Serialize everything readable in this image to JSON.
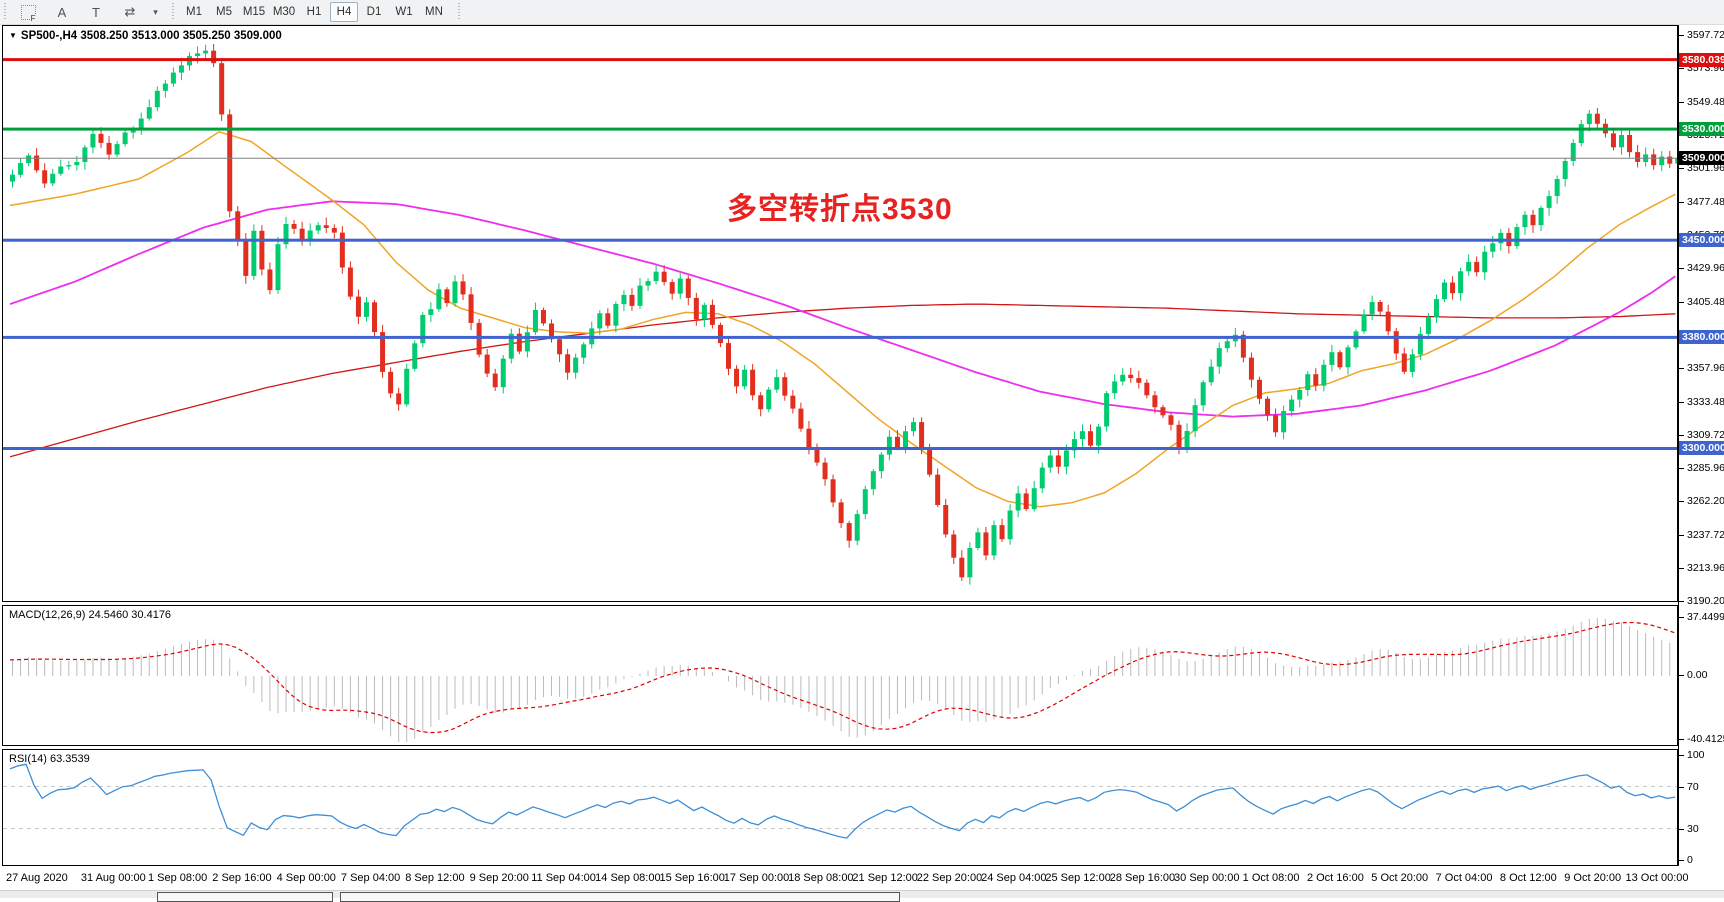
{
  "toolbar": {
    "icons": [
      {
        "name": "indicators-grid-icon",
        "glyph": "F",
        "kind": "grid"
      },
      {
        "name": "text-label-icon",
        "glyph": "A",
        "kind": "glyph"
      },
      {
        "name": "text-box-icon",
        "glyph": "T",
        "kind": "glyph"
      },
      {
        "name": "cursor-tools-icon",
        "glyph": "⇄",
        "kind": "glyph"
      },
      {
        "name": "cursor-tools-caret-icon",
        "glyph": "▾",
        "kind": "caret"
      }
    ],
    "timeframes": [
      {
        "label": "M1",
        "active": false
      },
      {
        "label": "M5",
        "active": false
      },
      {
        "label": "M15",
        "active": false
      },
      {
        "label": "M30",
        "active": false
      },
      {
        "label": "H1",
        "active": false
      },
      {
        "label": "H4",
        "active": true
      },
      {
        "label": "D1",
        "active": false
      },
      {
        "label": "W1",
        "active": false
      },
      {
        "label": "MN",
        "active": false
      }
    ]
  },
  "chart": {
    "header": "SP500-,H4  3508.250 3513.000 3505.250 3509.000",
    "annotation": "多空转折点3530",
    "colors": {
      "candle_up": "#00cb70",
      "candle_down": "#e12e1e",
      "ma_fast": "#efa524",
      "ma_mid": "#ee2dee",
      "ma_slow": "#d01616",
      "line_red": "#dd0e0e",
      "line_green": "#009f3c",
      "line_blue": "#3f63cf",
      "price_line": "#808080",
      "macd_hist": "#bbbbbb",
      "macd_signal": "#e00000",
      "rsi_line": "#3d8fd6",
      "annotation": "#e62320"
    },
    "price_axis_ticks": [
      "3597.720",
      "3573.960",
      "3549.480",
      "3525.720",
      "3501.960",
      "3477.480",
      "3453.720",
      "3429.960",
      "3405.480",
      "3381.720",
      "3357.960",
      "3333.480",
      "3309.720",
      "3285.960",
      "3262.200",
      "3237.720",
      "3213.960",
      "3190.200"
    ],
    "hlines": [
      {
        "label": "3580.039",
        "value": 3580.039,
        "color": "#dd0e0e",
        "width": 3
      },
      {
        "label": "3530.000",
        "value": 3530.0,
        "color": "#009f3c",
        "width": 3
      },
      {
        "label": "3450.000",
        "value": 3450.0,
        "color": "#3f63cf",
        "width": 3
      },
      {
        "label": "3380.000",
        "value": 3380.0,
        "color": "#3f63cf",
        "width": 3
      },
      {
        "label": "3300.000",
        "value": 3300.0,
        "color": "#3f63cf",
        "width": 3
      }
    ],
    "current_price": {
      "label": "3509.000",
      "value": 3509.0,
      "badge_bg": "#000000"
    }
  },
  "panels": {
    "macd_label": "MACD(12,26,9) 24.5460 30.4176",
    "rsi_label": "RSI(14) 63.3539"
  },
  "chart_data": {
    "type": "candlestick",
    "symbol": "SP500-",
    "timeframe": "H4",
    "ohlc_current": {
      "open": 3508.25,
      "high": 3513.0,
      "low": 3505.25,
      "close": 3509.0
    },
    "levels": [
      3580.039,
      3530.0,
      3450.0,
      3380.0,
      3300.0
    ],
    "price_range": {
      "top": 3597.72,
      "bottom": 3190.2
    },
    "bars": 208,
    "close_waypoints": [
      [
        0,
        3498
      ],
      [
        2,
        3512
      ],
      [
        4,
        3490
      ],
      [
        6,
        3503
      ],
      [
        8,
        3507
      ],
      [
        10,
        3528
      ],
      [
        12,
        3511
      ],
      [
        14,
        3526
      ],
      [
        16,
        3536
      ],
      [
        18,
        3556
      ],
      [
        20,
        3572
      ],
      [
        22,
        3583
      ],
      [
        24,
        3586
      ],
      [
        25,
        3576
      ],
      [
        26,
        3542
      ],
      [
        27,
        3470
      ],
      [
        28,
        3448
      ],
      [
        29,
        3425
      ],
      [
        30,
        3456
      ],
      [
        31,
        3430
      ],
      [
        32,
        3414
      ],
      [
        33,
        3446
      ],
      [
        34,
        3463
      ],
      [
        36,
        3450
      ],
      [
        38,
        3461
      ],
      [
        40,
        3456
      ],
      [
        41,
        3430
      ],
      [
        42,
        3410
      ],
      [
        43,
        3394
      ],
      [
        44,
        3406
      ],
      [
        45,
        3384
      ],
      [
        46,
        3354
      ],
      [
        47,
        3339
      ],
      [
        48,
        3330
      ],
      [
        49,
        3356
      ],
      [
        50,
        3376
      ],
      [
        51,
        3396
      ],
      [
        52,
        3401
      ],
      [
        53,
        3416
      ],
      [
        54,
        3404
      ],
      [
        55,
        3421
      ],
      [
        56,
        3410
      ],
      [
        57,
        3389
      ],
      [
        58,
        3369
      ],
      [
        59,
        3354
      ],
      [
        60,
        3343
      ],
      [
        61,
        3366
      ],
      [
        62,
        3381
      ],
      [
        63,
        3371
      ],
      [
        64,
        3383
      ],
      [
        65,
        3399
      ],
      [
        66,
        3391
      ],
      [
        67,
        3379
      ],
      [
        68,
        3369
      ],
      [
        69,
        3354
      ],
      [
        70,
        3366
      ],
      [
        71,
        3376
      ],
      [
        72,
        3386
      ],
      [
        73,
        3396
      ],
      [
        74,
        3389
      ],
      [
        75,
        3403
      ],
      [
        76,
        3411
      ],
      [
        77,
        3404
      ],
      [
        78,
        3416
      ],
      [
        79,
        3421
      ],
      [
        80,
        3429
      ],
      [
        81,
        3419
      ],
      [
        82,
        3411
      ],
      [
        83,
        3421
      ],
      [
        84,
        3407
      ],
      [
        85,
        3394
      ],
      [
        86,
        3403
      ],
      [
        87,
        3389
      ],
      [
        88,
        3377
      ],
      [
        89,
        3359
      ],
      [
        90,
        3344
      ],
      [
        91,
        3356
      ],
      [
        92,
        3339
      ],
      [
        93,
        3329
      ],
      [
        94,
        3343
      ],
      [
        95,
        3353
      ],
      [
        96,
        3339
      ],
      [
        97,
        3327
      ],
      [
        98,
        3314
      ],
      [
        99,
        3299
      ],
      [
        100,
        3291
      ],
      [
        101,
        3279
      ],
      [
        102,
        3261
      ],
      [
        103,
        3247
      ],
      [
        104,
        3234
      ],
      [
        105,
        3253
      ],
      [
        106,
        3271
      ],
      [
        107,
        3283
      ],
      [
        108,
        3296
      ],
      [
        109,
        3309
      ],
      [
        110,
        3299
      ],
      [
        111,
        3313
      ],
      [
        112,
        3319
      ],
      [
        113,
        3299
      ],
      [
        114,
        3281
      ],
      [
        115,
        3259
      ],
      [
        116,
        3239
      ],
      [
        117,
        3222
      ],
      [
        118,
        3208
      ],
      [
        119,
        3229
      ],
      [
        120,
        3239
      ],
      [
        121,
        3224
      ],
      [
        122,
        3246
      ],
      [
        123,
        3234
      ],
      [
        124,
        3256
      ],
      [
        125,
        3269
      ],
      [
        126,
        3257
      ],
      [
        127,
        3273
      ],
      [
        128,
        3286
      ],
      [
        129,
        3296
      ],
      [
        130,
        3287
      ],
      [
        131,
        3299
      ],
      [
        132,
        3306
      ],
      [
        133,
        3311
      ],
      [
        134,
        3301
      ],
      [
        135,
        3316
      ],
      [
        136,
        3341
      ],
      [
        138,
        3353
      ],
      [
        140,
        3346
      ],
      [
        142,
        3331
      ],
      [
        144,
        3316
      ],
      [
        145,
        3301
      ],
      [
        146,
        3313
      ],
      [
        147,
        3331
      ],
      [
        148,
        3346
      ],
      [
        149,
        3359
      ],
      [
        150,
        3371
      ],
      [
        152,
        3381
      ],
      [
        153,
        3367
      ],
      [
        154,
        3351
      ],
      [
        155,
        3337
      ],
      [
        156,
        3324
      ],
      [
        157,
        3311
      ],
      [
        158,
        3326
      ],
      [
        160,
        3341
      ],
      [
        161,
        3353
      ],
      [
        162,
        3344
      ],
      [
        163,
        3359
      ],
      [
        164,
        3369
      ],
      [
        165,
        3359
      ],
      [
        166,
        3373
      ],
      [
        167,
        3383
      ],
      [
        168,
        3396
      ],
      [
        169,
        3406
      ],
      [
        170,
        3397
      ],
      [
        171,
        3384
      ],
      [
        172,
        3369
      ],
      [
        173,
        3354
      ],
      [
        174,
        3369
      ],
      [
        175,
        3383
      ],
      [
        176,
        3396
      ],
      [
        177,
        3409
      ],
      [
        178,
        3419
      ],
      [
        179,
        3411
      ],
      [
        180,
        3426
      ],
      [
        181,
        3433
      ],
      [
        182,
        3427
      ],
      [
        183,
        3441
      ],
      [
        184,
        3449
      ],
      [
        185,
        3456
      ],
      [
        186,
        3447
      ],
      [
        187,
        3461
      ],
      [
        188,
        3469
      ],
      [
        189,
        3461
      ],
      [
        190,
        3473
      ],
      [
        191,
        3481
      ],
      [
        192,
        3493
      ],
      [
        193,
        3506
      ],
      [
        194,
        3521
      ],
      [
        195,
        3533
      ],
      [
        196,
        3541
      ],
      [
        197,
        3534
      ],
      [
        198,
        3527
      ],
      [
        199,
        3517
      ],
      [
        200,
        3526
      ],
      [
        201,
        3514
      ],
      [
        202,
        3507
      ],
      [
        203,
        3513
      ],
      [
        204,
        3504
      ],
      [
        205,
        3511
      ],
      [
        206,
        3505
      ],
      [
        207,
        3509
      ]
    ],
    "ma_fast_waypoints": [
      [
        0,
        3475
      ],
      [
        8,
        3483
      ],
      [
        16,
        3494
      ],
      [
        22,
        3513
      ],
      [
        26,
        3528
      ],
      [
        30,
        3521
      ],
      [
        34,
        3504
      ],
      [
        40,
        3479
      ],
      [
        44,
        3461
      ],
      [
        48,
        3434
      ],
      [
        52,
        3414
      ],
      [
        56,
        3401
      ],
      [
        60,
        3394
      ],
      [
        64,
        3387
      ],
      [
        68,
        3384
      ],
      [
        72,
        3383
      ],
      [
        76,
        3386
      ],
      [
        80,
        3393
      ],
      [
        84,
        3398
      ],
      [
        88,
        3397
      ],
      [
        92,
        3389
      ],
      [
        96,
        3377
      ],
      [
        100,
        3361
      ],
      [
        104,
        3341
      ],
      [
        108,
        3321
      ],
      [
        112,
        3304
      ],
      [
        116,
        3288
      ],
      [
        120,
        3272
      ],
      [
        124,
        3262
      ],
      [
        128,
        3258
      ],
      [
        132,
        3261
      ],
      [
        136,
        3268
      ],
      [
        140,
        3282
      ],
      [
        144,
        3300
      ],
      [
        148,
        3316
      ],
      [
        152,
        3331
      ],
      [
        156,
        3340
      ],
      [
        160,
        3343
      ],
      [
        164,
        3347
      ],
      [
        168,
        3356
      ],
      [
        172,
        3361
      ],
      [
        176,
        3368
      ],
      [
        180,
        3379
      ],
      [
        184,
        3392
      ],
      [
        188,
        3407
      ],
      [
        192,
        3424
      ],
      [
        196,
        3444
      ],
      [
        200,
        3461
      ],
      [
        204,
        3474
      ],
      [
        207,
        3483
      ]
    ],
    "ma_mid_waypoints": [
      [
        0,
        3404
      ],
      [
        8,
        3420
      ],
      [
        16,
        3440
      ],
      [
        24,
        3459
      ],
      [
        32,
        3472
      ],
      [
        40,
        3478
      ],
      [
        48,
        3476
      ],
      [
        56,
        3468
      ],
      [
        64,
        3457
      ],
      [
        72,
        3445
      ],
      [
        80,
        3433
      ],
      [
        88,
        3419
      ],
      [
        96,
        3404
      ],
      [
        104,
        3387
      ],
      [
        112,
        3371
      ],
      [
        120,
        3355
      ],
      [
        128,
        3341
      ],
      [
        136,
        3332
      ],
      [
        144,
        3326
      ],
      [
        152,
        3323
      ],
      [
        160,
        3325
      ],
      [
        168,
        3331
      ],
      [
        176,
        3342
      ],
      [
        184,
        3356
      ],
      [
        192,
        3374
      ],
      [
        200,
        3398
      ],
      [
        204,
        3412
      ],
      [
        207,
        3424
      ]
    ],
    "ma_slow_waypoints": [
      [
        0,
        3294
      ],
      [
        8,
        3307
      ],
      [
        16,
        3320
      ],
      [
        24,
        3332
      ],
      [
        32,
        3344
      ],
      [
        40,
        3354
      ],
      [
        48,
        3362
      ],
      [
        56,
        3370
      ],
      [
        64,
        3377
      ],
      [
        72,
        3383
      ],
      [
        80,
        3389
      ],
      [
        88,
        3394
      ],
      [
        96,
        3398
      ],
      [
        104,
        3401
      ],
      [
        112,
        3403
      ],
      [
        120,
        3404
      ],
      [
        128,
        3403
      ],
      [
        136,
        3402
      ],
      [
        144,
        3401
      ],
      [
        152,
        3399
      ],
      [
        160,
        3397
      ],
      [
        168,
        3396
      ],
      [
        176,
        3395
      ],
      [
        184,
        3394
      ],
      [
        192,
        3394
      ],
      [
        200,
        3395
      ],
      [
        207,
        3397
      ]
    ],
    "macd": {
      "fast": 12,
      "slow": 26,
      "signal": 9,
      "main_value": 24.546,
      "signal_value": 30.4176,
      "axis": [
        "37.4499",
        "0.00",
        "-40.4125"
      ],
      "axis_max": 37.4499,
      "axis_min": -40.4125
    },
    "rsi": {
      "period": 14,
      "value": 63.3539,
      "axis": [
        "100",
        "70",
        "30",
        "0"
      ],
      "levels": [
        70,
        30
      ]
    },
    "dates": [
      "27 Aug 2020",
      "31 Aug 00:00",
      "1 Sep 08:00",
      "2 Sep 16:00",
      "4 Sep 00:00",
      "7 Sep 04:00",
      "8 Sep 12:00",
      "9 Sep 20:00",
      "11 Sep 04:00",
      "14 Sep 08:00",
      "15 Sep 16:00",
      "17 Sep 00:00",
      "18 Sep 08:00",
      "21 Sep 12:00",
      "22 Sep 20:00",
      "24 Sep 04:00",
      "25 Sep 12:00",
      "28 Sep 16:00",
      "30 Sep 00:00",
      "1 Oct 08:00",
      "2 Oct 16:00",
      "5 Oct 20:00",
      "7 Oct 04:00",
      "8 Oct 12:00",
      "9 Oct 20:00",
      "13 Oct 00:00"
    ]
  }
}
